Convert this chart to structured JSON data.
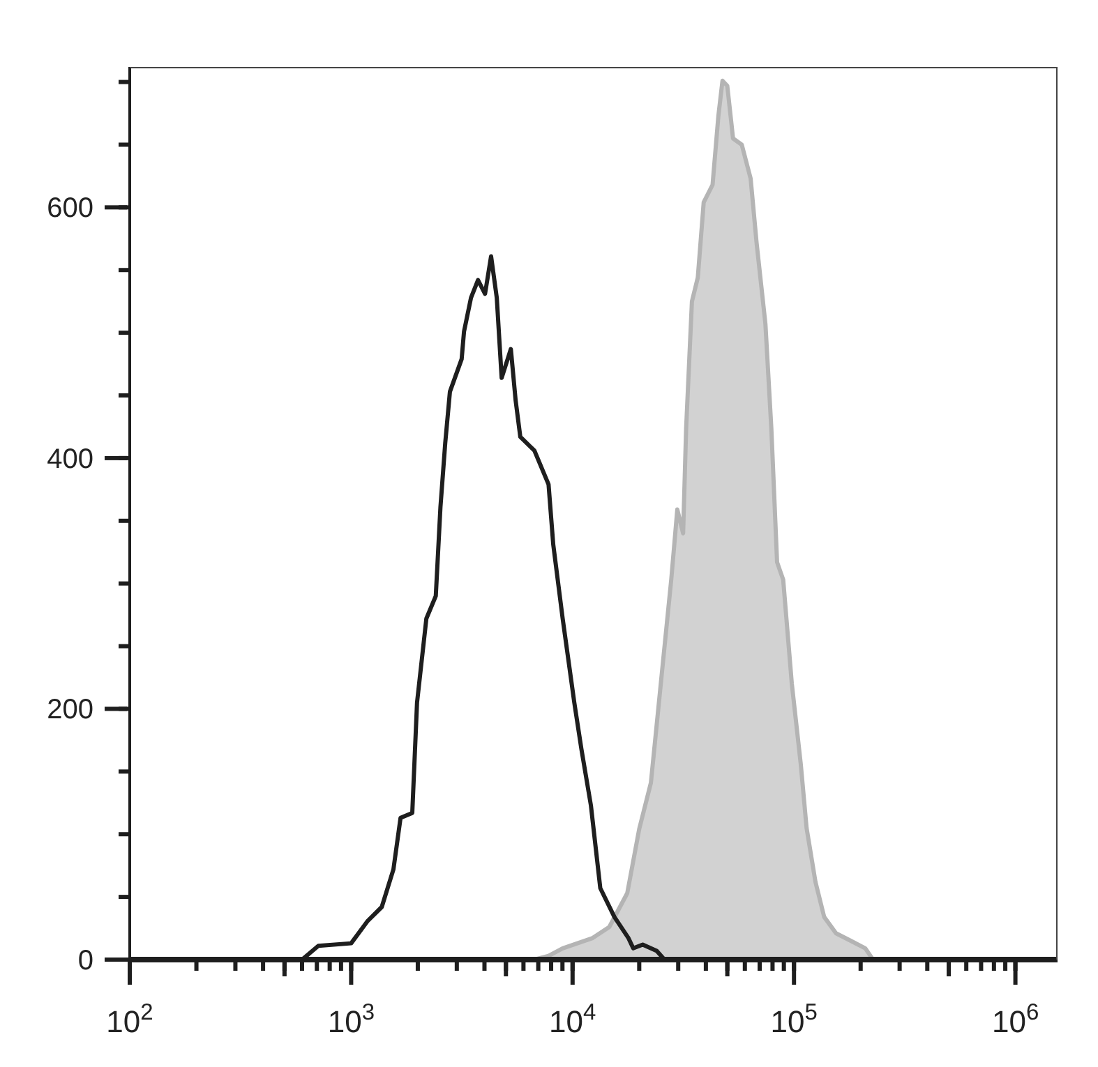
{
  "chart_data": {
    "type": "area",
    "log": "x",
    "grid": false,
    "legend": false,
    "marker": "none",
    "xlim": [
      100,
      1550000
    ],
    "ylim": [
      0,
      712
    ],
    "xticks": [
      {
        "value": 100,
        "label": "10$^{2}$"
      },
      {
        "value": 200,
        "label": null
      },
      {
        "value": 300,
        "label": null
      },
      {
        "value": 400,
        "label": null
      },
      {
        "value": 500,
        "label": null
      },
      {
        "value": 600,
        "label": null
      },
      {
        "value": 700,
        "label": null
      },
      {
        "value": 800,
        "label": null
      },
      {
        "value": 900,
        "label": null
      },
      {
        "value": 1000,
        "label": "10$^{3}$"
      },
      {
        "value": 2000,
        "label": null
      },
      {
        "value": 3000,
        "label": null
      },
      {
        "value": 4000,
        "label": null
      },
      {
        "value": 5000,
        "label": null
      },
      {
        "value": 6000,
        "label": null
      },
      {
        "value": 7000,
        "label": null
      },
      {
        "value": 8000,
        "label": null
      },
      {
        "value": 9000,
        "label": null
      },
      {
        "value": 10000,
        "label": "10$^{4}$"
      },
      {
        "value": 20000,
        "label": null
      },
      {
        "value": 30000,
        "label": null
      },
      {
        "value": 40000,
        "label": null
      },
      {
        "value": 50000,
        "label": null
      },
      {
        "value": 60000,
        "label": null
      },
      {
        "value": 70000,
        "label": null
      },
      {
        "value": 80000,
        "label": null
      },
      {
        "value": 90000,
        "label": null
      },
      {
        "value": 100000,
        "label": "10$^{5}$"
      },
      {
        "value": 200000,
        "label": null
      },
      {
        "value": 300000,
        "label": null
      },
      {
        "value": 400000,
        "label": null
      },
      {
        "value": 500000,
        "label": null
      },
      {
        "value": 600000,
        "label": null
      },
      {
        "value": 700000,
        "label": null
      },
      {
        "value": 800000,
        "label": null
      },
      {
        "value": 900000,
        "label": null
      },
      {
        "value": 1000000,
        "label": "10$^{6}$"
      }
    ],
    "yticks": [
      0,
      {
        "value": 50,
        "label": null
      },
      {
        "value": 100,
        "label": null
      },
      {
        "value": 150,
        "label": null
      },
      200,
      {
        "value": 250,
        "label": null
      },
      {
        "value": 300,
        "label": null
      },
      {
        "value": 350,
        "label": null
      },
      400,
      {
        "value": 450,
        "label": null
      },
      {
        "value": 500,
        "label": null
      },
      {
        "value": 550,
        "label": null
      },
      600,
      {
        "value": 650,
        "label": null
      },
      {
        "value": 700,
        "label": null
      }
    ],
    "series": [
      {
        "color": "#b4b4b4",
        "x": [
          6730,
          7790,
          9020,
          12250,
          14650,
          17660,
          19990,
          22580,
          25490,
          27900,
          29720,
          31570,
          32580,
          34600,
          36780,
          39100,
          42880,
          45560,
          47540,
          49970,
          53060,
          58100,
          63710,
          67760,
          74300,
          79000,
          83880,
          89380,
          97780,
          107300,
          114000,
          125000,
          136900,
          154800,
          180400,
          210000,
          227300
        ],
        "values": [
          0,
          3,
          9,
          17,
          26,
          53,
          104,
          141,
          234,
          303,
          359,
          340,
          424,
          525,
          544,
          604,
          618,
          673,
          701,
          697,
          655,
          650,
          623,
          572,
          507,
          424,
          317,
          303,
          220,
          156,
          105,
          62,
          34,
          21,
          15,
          9,
          0
        ]
      },
      {
        "type": "line",
        "color": "#1e1e1e",
        "x": [
          600,
          711,
          1000,
          1189,
          1375,
          1552,
          1671,
          1888,
          1984,
          2186,
          2411,
          2531,
          2660,
          2793,
          3155,
          3234,
          3478,
          3740,
          4024,
          4285,
          4546,
          4783,
          5263,
          5531,
          5806,
          6724,
          7790,
          8180,
          9022,
          10180,
          10960,
          12100,
          13340,
          15450,
          17900,
          18790,
          20740,
          23990,
          26000
        ],
        "values": [
          0,
          11,
          13,
          31,
          42,
          72,
          113,
          117,
          205,
          272,
          290,
          361,
          412,
          453,
          479,
          501,
          528,
          542,
          531,
          561,
          528,
          464,
          487,
          446,
          417,
          406,
          379,
          331,
          272,
          205,
          168,
          123,
          57,
          34,
          17,
          9,
          12,
          7,
          0
        ]
      }
    ]
  }
}
